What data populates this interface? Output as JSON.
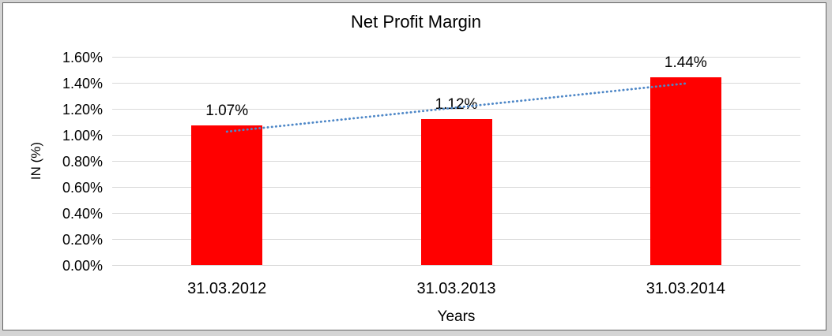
{
  "chart_data": {
    "type": "bar",
    "title": "Net Profit Margin",
    "xlabel": "Years",
    "ylabel": "IN (%)",
    "categories": [
      "31.03.2012",
      "31.03.2013",
      "31.03.2014"
    ],
    "values": [
      1.07,
      1.12,
      1.44
    ],
    "data_labels": [
      "1.07%",
      "1.12%",
      "1.44%"
    ],
    "ylim": [
      0,
      1.6
    ],
    "ytick_step": 0.2,
    "ytick_labels": [
      "0.00%",
      "0.20%",
      "0.40%",
      "0.60%",
      "0.80%",
      "1.00%",
      "1.20%",
      "1.40%",
      "1.60%"
    ],
    "grid": true,
    "legend": "none",
    "bar_color": "#ff0000",
    "gridline_color": "#d9d9d9",
    "trendline": {
      "type": "linear",
      "style": "dotted",
      "color": "#4e87c7"
    }
  }
}
